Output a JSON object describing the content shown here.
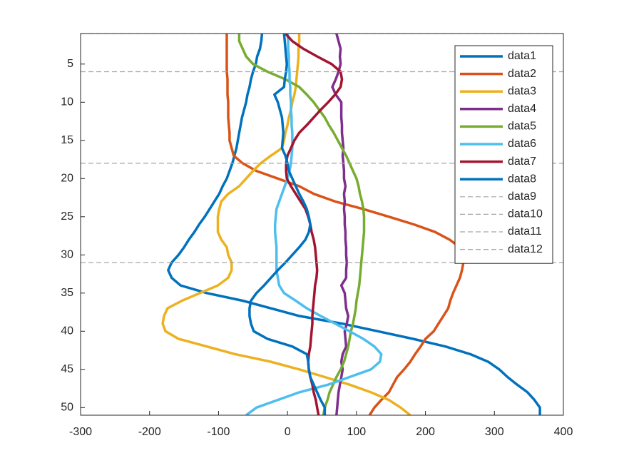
{
  "chart_data": {
    "type": "line",
    "orientation": "horizontal",
    "y_reversed": true,
    "y": [
      1,
      2,
      3,
      4,
      5,
      6,
      7,
      8,
      9,
      10,
      11,
      12,
      13,
      14,
      15,
      16,
      17,
      18,
      19,
      20,
      21,
      22,
      23,
      24,
      25,
      26,
      27,
      28,
      29,
      30,
      31,
      32,
      33,
      34,
      35,
      36,
      37,
      38,
      39,
      40,
      41,
      42,
      43,
      44,
      45,
      46,
      47,
      48,
      49,
      50,
      51
    ],
    "xlim": [
      -300,
      400
    ],
    "xticks": [
      -300,
      -200,
      -100,
      0,
      100,
      200,
      300,
      400
    ],
    "ylim": [
      1,
      51
    ],
    "yticks": [
      5,
      10,
      15,
      20,
      25,
      30,
      35,
      40,
      45,
      50
    ],
    "legend": "upper right",
    "series": [
      {
        "name": "data1",
        "color": "#0072BD",
        "values": [
          -37,
          -38,
          -40,
          -44,
          -46,
          -50,
          -53,
          -55,
          -58,
          -60,
          -63,
          -66,
          -68,
          -70,
          -72,
          -74,
          -77,
          -80,
          -84,
          -88,
          -94,
          -99,
          -106,
          -113,
          -120,
          -128,
          -135,
          -143,
          -150,
          -158,
          -168,
          -173,
          -168,
          -155,
          -117,
          -65,
          -24,
          17,
          79,
          131,
          182,
          229,
          265,
          291,
          307,
          319,
          333,
          348,
          358,
          366,
          366
        ]
      },
      {
        "name": "data2",
        "color": "#D95319",
        "values": [
          -88,
          -88,
          -88,
          -88,
          -88,
          -88,
          -87,
          -87,
          -87,
          -86,
          -86,
          -86,
          -85,
          -84,
          -84,
          -81,
          -78,
          -65,
          -45,
          -14,
          17,
          38,
          69,
          110,
          147,
          183,
          214,
          235,
          250,
          255,
          255,
          253,
          250,
          245,
          240,
          236,
          233,
          226,
          219,
          212,
          200,
          193,
          185,
          178,
          169,
          159,
          153,
          147,
          136,
          126,
          119
        ]
      },
      {
        "name": "data3",
        "color": "#EDB120",
        "values": [
          17,
          17,
          16,
          16,
          15,
          14,
          13,
          12,
          10,
          7,
          5,
          2,
          0,
          -3,
          -5,
          -8,
          -24,
          -39,
          -50,
          -60,
          -70,
          -86,
          -96,
          -99,
          -101,
          -101,
          -101,
          -96,
          -88,
          -86,
          -81,
          -81,
          -86,
          -101,
          -127,
          -153,
          -174,
          -179,
          -181,
          -177,
          -158,
          -117,
          -76,
          -24,
          17,
          54,
          90,
          121,
          147,
          164,
          178
        ]
      },
      {
        "name": "data4",
        "color": "#7E2F8E",
        "values": [
          71,
          74,
          77,
          76,
          77,
          74,
          70,
          65,
          70,
          78,
          78,
          78,
          79,
          79,
          80,
          81,
          80,
          81,
          82,
          82,
          84,
          82,
          83,
          82,
          83,
          83,
          84,
          84,
          85,
          85,
          86,
          85,
          85,
          78,
          83,
          84,
          85,
          88,
          86,
          83,
          84,
          85,
          80,
          78,
          80,
          78,
          76,
          74,
          73,
          72,
          71
        ]
      },
      {
        "name": "data5",
        "color": "#77AC30",
        "values": [
          -70,
          -70,
          -65,
          -60,
          -50,
          -29,
          -3,
          17,
          28,
          38,
          46,
          54,
          60,
          67,
          73,
          79,
          85,
          90,
          95,
          100,
          103,
          105,
          108,
          110,
          111,
          111,
          111,
          110,
          109,
          108,
          107,
          106,
          105,
          104,
          102,
          100,
          99,
          97,
          95,
          92,
          90,
          88,
          85,
          82,
          77,
          71,
          66,
          61,
          58,
          54,
          52
        ]
      },
      {
        "name": "data6",
        "color": "#4DBEEE",
        "values": [
          0,
          1,
          1,
          2,
          2,
          3,
          3,
          4,
          4,
          5,
          5,
          6,
          6,
          7,
          7,
          7,
          6,
          5,
          3,
          0,
          -4,
          -8,
          -12,
          -16,
          -17,
          -18,
          -18,
          -17,
          -16,
          -16,
          -16,
          -16,
          -14,
          -12,
          -5,
          12,
          28,
          48,
          69,
          90,
          110,
          126,
          136,
          134,
          121,
          90,
          59,
          17,
          -14,
          -45,
          -60
        ]
      },
      {
        "name": "data7",
        "color": "#A2142F",
        "values": [
          -3,
          7,
          23,
          43,
          64,
          77,
          79,
          77,
          69,
          59,
          48,
          38,
          28,
          17,
          10,
          5,
          0,
          -2,
          -2,
          -1,
          5,
          12,
          19,
          26,
          30,
          33,
          35,
          38,
          40,
          41,
          42,
          43,
          42,
          40,
          39,
          38,
          37,
          36,
          36,
          35,
          34,
          33,
          31,
          30,
          31,
          33,
          36,
          38,
          41,
          43,
          45
        ]
      },
      {
        "name": "data8",
        "color": "#0072BD",
        "values": [
          -5,
          -4,
          -3,
          -2,
          -1,
          -2,
          -4,
          -5,
          -19,
          -14,
          -11,
          -8,
          -7,
          -6,
          -7,
          -8,
          -3,
          0,
          2,
          7,
          12,
          17,
          23,
          28,
          31,
          33,
          31,
          26,
          17,
          7,
          -3,
          -14,
          -24,
          -34,
          -45,
          -53,
          -55,
          -55,
          -53,
          -49,
          -29,
          7,
          28,
          30,
          31,
          33,
          38,
          43,
          48,
          54,
          54
        ]
      },
      {
        "name": "data9",
        "color": "#a6a6a6",
        "style": "dashed",
        "y": 1
      },
      {
        "name": "data10",
        "color": "#a6a6a6",
        "style": "dashed",
        "y": 6
      },
      {
        "name": "data11",
        "color": "#a6a6a6",
        "style": "dashed",
        "y": 18
      },
      {
        "name": "data12",
        "color": "#a6a6a6",
        "style": "dashed",
        "y": 31
      }
    ]
  }
}
